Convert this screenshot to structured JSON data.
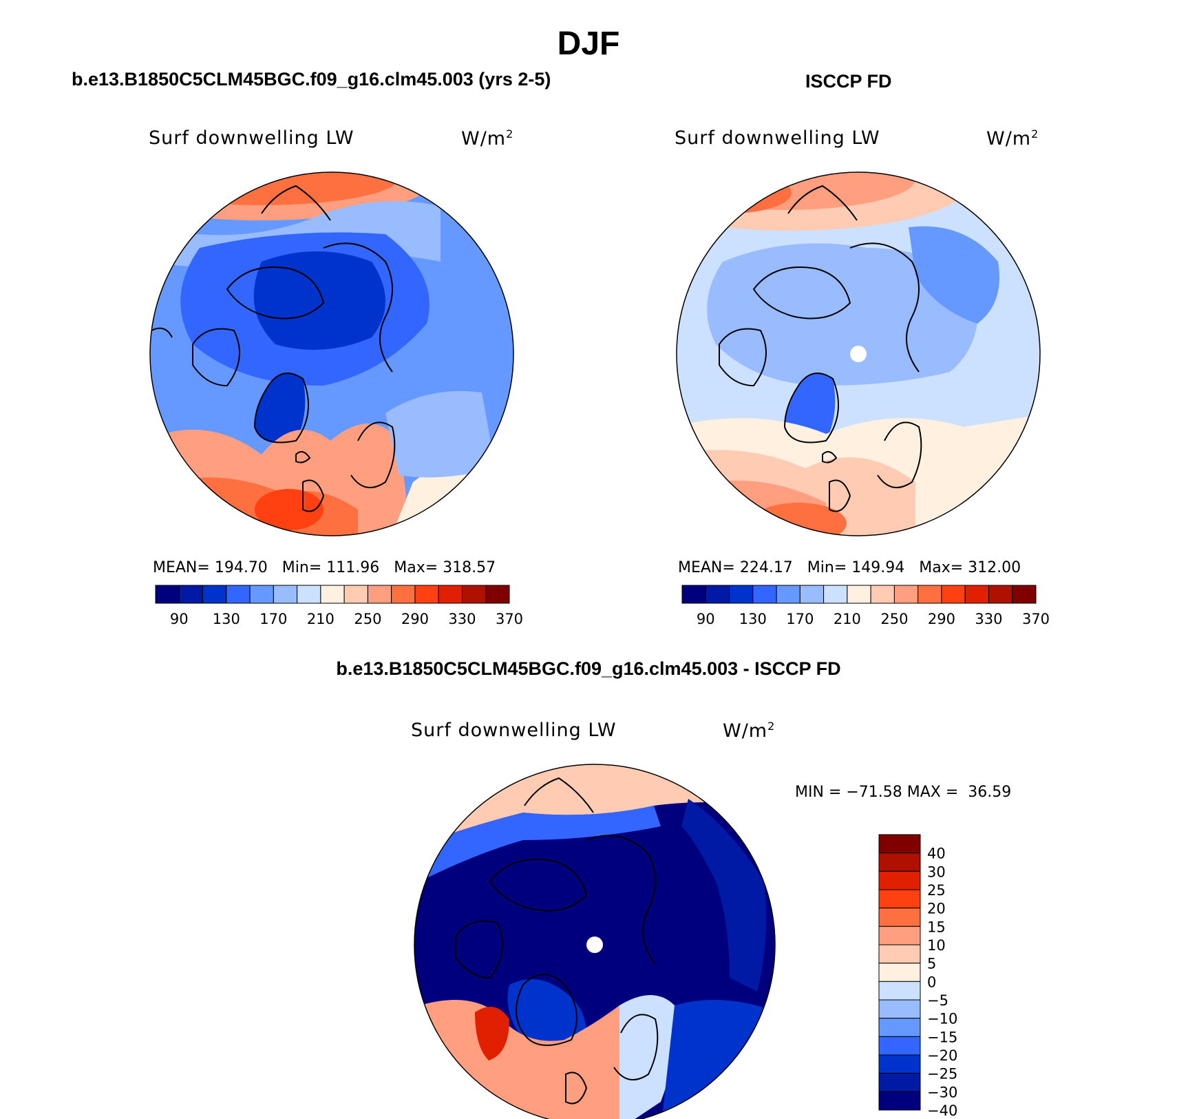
{
  "title": "DJF",
  "colors": {
    "levels": [
      "#00007f",
      "#001aa6",
      "#0033cc",
      "#3366ff",
      "#6699ff",
      "#99bbff",
      "#cce0ff",
      "#fff0e0",
      "#ffccb3",
      "#ff9f80",
      "#ff7040",
      "#ff4010",
      "#e02000",
      "#b01000",
      "#800000"
    ],
    "land_outline": "#000000",
    "pole_hole": "#ffffff"
  },
  "panels": {
    "model": {
      "title": "b.e13.B1850C5CLM45BGC.f09_g16.clm45.003 (yrs 2-5)",
      "variable": "Surf downwelling LW",
      "units_base": "W/m",
      "units_exp": "2",
      "stats": {
        "mean_label": "MEAN=",
        "mean": "194.70",
        "min_label": "Min=",
        "min": "111.96",
        "max_label": "Max=",
        "max": "318.57"
      },
      "colorbar_ticks": [
        "90",
        "130",
        "170",
        "210",
        "250",
        "290",
        "330",
        "370"
      ]
    },
    "obs": {
      "title": "ISCCP FD",
      "variable": "Surf downwelling LW",
      "units_base": "W/m",
      "units_exp": "2",
      "stats": {
        "mean_label": "MEAN=",
        "mean": "224.17",
        "min_label": "Min=",
        "min": "149.94",
        "max_label": "Max=",
        "max": "312.00"
      },
      "colorbar_ticks": [
        "90",
        "130",
        "170",
        "210",
        "250",
        "290",
        "330",
        "370"
      ]
    },
    "diff": {
      "title": "b.e13.B1850C5CLM45BGC.f09_g16.clm45.003 - ISCCP FD",
      "variable": "Surf downwelling LW",
      "units_base": "W/m",
      "units_exp": "2",
      "minmax_text": "MIN = −71.58 MAX =  36.59",
      "colorbar_ticks": [
        "40",
        "30",
        "25",
        "20",
        "15",
        "10",
        "5",
        "0",
        "−5",
        "−10",
        "−15",
        "−20",
        "−25",
        "−30",
        "−40"
      ]
    }
  }
}
